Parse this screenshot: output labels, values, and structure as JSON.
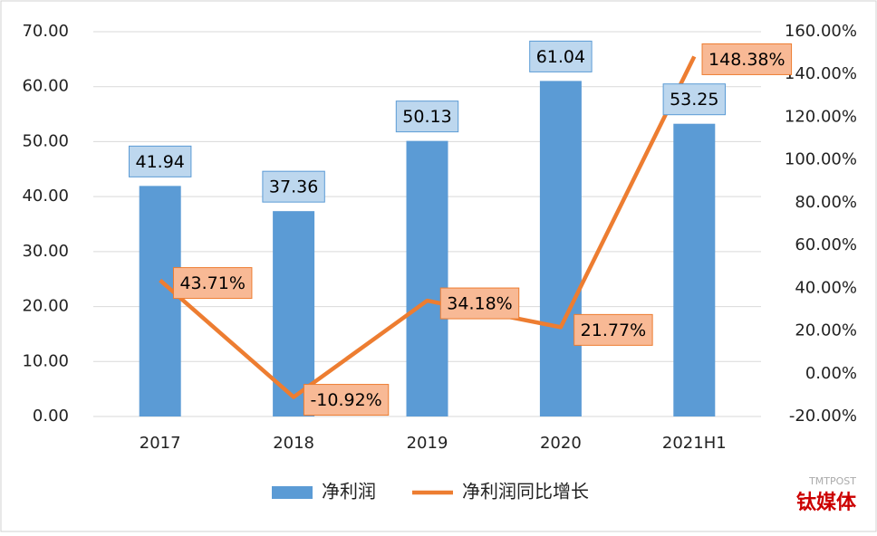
{
  "chart_data": {
    "type": "combo",
    "categories": [
      "2017",
      "2018",
      "2019",
      "2020",
      "2021H1"
    ],
    "series": [
      {
        "name": "净利润",
        "type": "bar",
        "color": "#5b9bd5",
        "values": [
          41.94,
          37.36,
          50.13,
          61.04,
          53.25
        ]
      },
      {
        "name": "净利润同比增长",
        "type": "line",
        "axis": "y2",
        "color": "#ed7d31",
        "values": [
          43.71,
          -10.92,
          34.18,
          21.77,
          148.38
        ],
        "value_labels": [
          "43.71%",
          "-10.92%",
          "34.18%",
          "21.77%",
          "148.38%"
        ]
      }
    ],
    "ylim": [
      0,
      70
    ],
    "yticks": [
      {
        "value": 0,
        "label": "0.00"
      },
      {
        "value": 10,
        "label": "10.00"
      },
      {
        "value": 20,
        "label": "20.00"
      },
      {
        "value": 30,
        "label": "30.00"
      },
      {
        "value": 40,
        "label": "40.00"
      },
      {
        "value": 50,
        "label": "50.00"
      },
      {
        "value": 60,
        "label": "60.00"
      },
      {
        "value": 70,
        "label": "70.00"
      }
    ],
    "y2lim": [
      -20,
      160
    ],
    "y2ticks": [
      {
        "value": -20,
        "label": "-20.00%"
      },
      {
        "value": 0,
        "label": "0.00%"
      },
      {
        "value": 20,
        "label": "20.00%"
      },
      {
        "value": 40,
        "label": "40.00%"
      },
      {
        "value": 60,
        "label": "60.00%"
      },
      {
        "value": 80,
        "label": "80.00%"
      },
      {
        "value": 100,
        "label": "100.00%"
      },
      {
        "value": 120,
        "label": "120.00%"
      },
      {
        "value": 140,
        "label": "140.00%"
      },
      {
        "value": 160,
        "label": "160.00%"
      }
    ],
    "grid": true,
    "legend": "bottom",
    "watermark": [
      "TMTPOST",
      "钛媒体"
    ]
  }
}
